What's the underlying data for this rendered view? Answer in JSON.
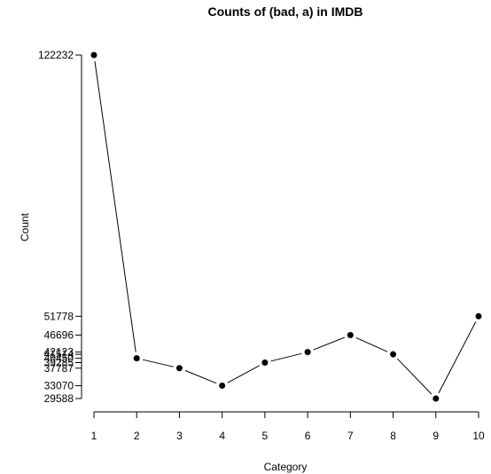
{
  "chart_data": {
    "type": "line",
    "title": "Counts of (bad, a) in IMDB",
    "xlabel": "Category",
    "ylabel": "Count",
    "x": [
      1,
      2,
      3,
      4,
      5,
      6,
      7,
      8,
      9,
      10
    ],
    "series": [
      {
        "values": [
          122232,
          40450,
          37787,
          33070,
          39285,
          42123,
          46696,
          41514,
          29588,
          51778
        ]
      }
    ],
    "x_ticks": [
      "1",
      "2",
      "3",
      "4",
      "5",
      "6",
      "7",
      "8",
      "9",
      "10"
    ],
    "y_ticks": [
      "29588",
      "33070",
      "37787",
      "39285",
      "40450",
      "41514",
      "42123",
      "46696",
      "51778",
      "122232"
    ],
    "ylim": [
      29588,
      122232
    ],
    "grid": false,
    "colors": {
      "line": "#000000",
      "points": "#000000"
    }
  }
}
